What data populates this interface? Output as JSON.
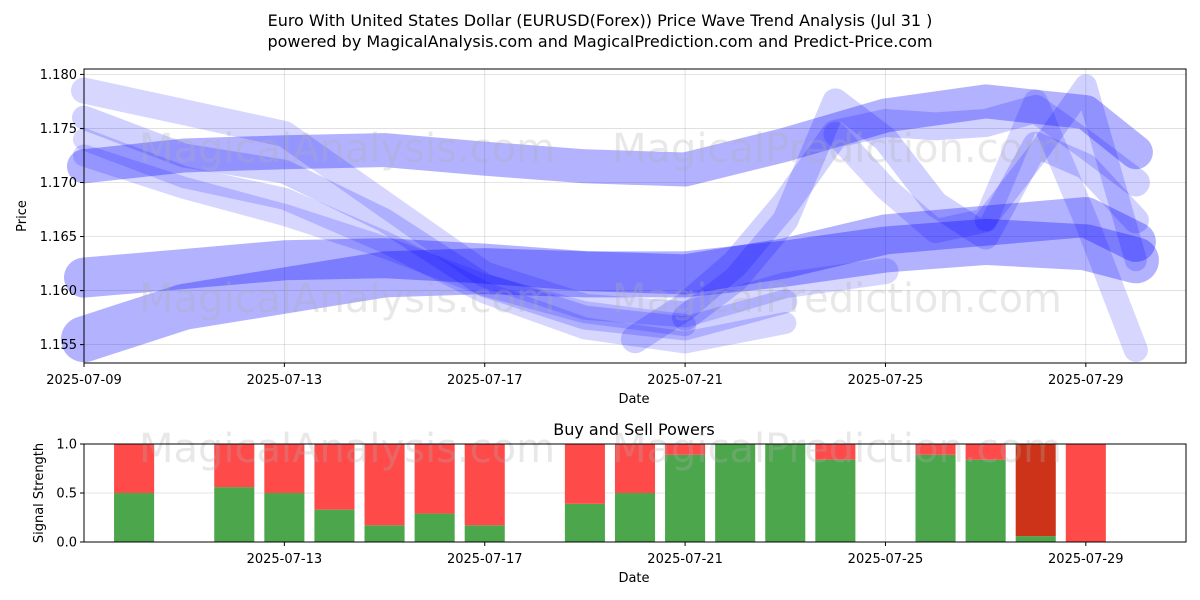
{
  "title_line1": "Euro With United States Dollar (EURUSD(Forex)) Price Wave Trend Analysis (Jul 31 )",
  "title_line2": "powered by MagicalAnalysis.com and MagicalPrediction.com and Predict-Price.com",
  "watermarks": [
    "MagicalAnalysis.com",
    "MagicalPrediction.com"
  ],
  "chart_data": [
    {
      "type": "line",
      "name": "price-wave-trend",
      "xlabel": "Date",
      "ylabel": "Price",
      "xlim": [
        "2025-07-09",
        "2025-07-31"
      ],
      "ylim": [
        1.1533,
        1.1805
      ],
      "x_ticks": [
        "2025-07-09",
        "2025-07-13",
        "2025-07-17",
        "2025-07-21",
        "2025-07-25",
        "2025-07-29"
      ],
      "y_ticks": [
        "1.155",
        "1.160",
        "1.165",
        "1.170",
        "1.175",
        "1.180"
      ],
      "y_tick_values": [
        1.155,
        1.16,
        1.165,
        1.17,
        1.175,
        1.18
      ],
      "grid": true,
      "color": "#0000ff",
      "series": [
        {
          "name": "wave-upper",
          "x": [
            "2025-07-09",
            "2025-07-11",
            "2025-07-13",
            "2025-07-15",
            "2025-07-17",
            "2025-07-19",
            "2025-07-21",
            "2025-07-23",
            "2025-07-25",
            "2025-07-27",
            "2025-07-29",
            "2025-07-30"
          ],
          "y": [
            1.1715,
            1.1725,
            1.1728,
            1.173,
            1.1722,
            1.1715,
            1.1712,
            1.1735,
            1.1762,
            1.1775,
            1.1765,
            1.1728
          ]
        },
        {
          "name": "wave-middle",
          "x": [
            "2025-07-09",
            "2025-07-11",
            "2025-07-13",
            "2025-07-15",
            "2025-07-17",
            "2025-07-19",
            "2025-07-21",
            "2025-07-23",
            "2025-07-25",
            "2025-07-27",
            "2025-07-29",
            "2025-07-30"
          ],
          "y": [
            1.1612,
            1.162,
            1.1628,
            1.163,
            1.1625,
            1.1618,
            1.1615,
            1.163,
            1.1652,
            1.166,
            1.1668,
            1.1645
          ]
        },
        {
          "name": "wave-lower",
          "x": [
            "2025-07-09",
            "2025-07-11",
            "2025-07-13",
            "2025-07-15",
            "2025-07-17",
            "2025-07-19",
            "2025-07-21",
            "2025-07-23",
            "2025-07-25",
            "2025-07-27",
            "2025-07-29",
            "2025-07-30"
          ],
          "y": [
            1.1555,
            1.1585,
            1.16,
            1.1615,
            1.1618,
            1.1615,
            1.1615,
            1.1625,
            1.1638,
            1.1645,
            1.164,
            1.1628
          ]
        },
        {
          "name": "wave-down-1",
          "x": [
            "2025-07-09",
            "2025-07-11",
            "2025-07-13",
            "2025-07-15",
            "2025-07-17",
            "2025-07-19",
            "2025-07-21",
            "2025-07-23",
            "2025-07-25"
          ],
          "y": [
            1.1785,
            1.1765,
            1.1745,
            1.168,
            1.1615,
            1.1585,
            1.1578,
            1.1605,
            1.1618
          ]
        },
        {
          "name": "wave-down-2",
          "x": [
            "2025-07-09",
            "2025-07-11",
            "2025-07-13",
            "2025-07-15",
            "2025-07-17",
            "2025-07-19",
            "2025-07-21",
            "2025-07-23"
          ],
          "y": [
            1.176,
            1.1725,
            1.171,
            1.1665,
            1.1605,
            1.1575,
            1.1565,
            1.159
          ]
        },
        {
          "name": "wave-down-3",
          "x": [
            "2025-07-09",
            "2025-07-11",
            "2025-07-13",
            "2025-07-15",
            "2025-07-17",
            "2025-07-19",
            "2025-07-21",
            "2025-07-23"
          ],
          "y": [
            1.174,
            1.1705,
            1.1685,
            1.1645,
            1.1598,
            1.1565,
            1.1552,
            1.157
          ]
        },
        {
          "name": "wave-down-4",
          "x": [
            "2025-07-09",
            "2025-07-11",
            "2025-07-13",
            "2025-07-15",
            "2025-07-17",
            "2025-07-19",
            "2025-07-21"
          ],
          "y": [
            1.1725,
            1.1695,
            1.167,
            1.164,
            1.1605,
            1.158,
            1.1568
          ]
        },
        {
          "name": "wave-up-1",
          "x": [
            "2025-07-20",
            "2025-07-21",
            "2025-07-22",
            "2025-07-23",
            "2025-07-24",
            "2025-07-25",
            "2025-07-26",
            "2025-07-27",
            "2025-07-28",
            "2025-07-29",
            "2025-07-30"
          ],
          "y": [
            1.1555,
            1.1585,
            1.1625,
            1.168,
            1.1745,
            1.1755,
            1.1752,
            1.1755,
            1.1768,
            1.1735,
            1.17
          ]
        },
        {
          "name": "wave-up-2",
          "x": [
            "2025-07-21",
            "2025-07-22",
            "2025-07-23",
            "2025-07-24",
            "2025-07-25",
            "2025-07-26",
            "2025-07-27",
            "2025-07-28",
            "2025-07-29",
            "2025-07-30"
          ],
          "y": [
            1.1575,
            1.161,
            1.1665,
            1.1775,
            1.174,
            1.168,
            1.165,
            1.1735,
            1.1715,
            1.1665
          ]
        },
        {
          "name": "wave-up-3",
          "x": [
            "2025-07-24",
            "2025-07-25",
            "2025-07-26",
            "2025-07-27",
            "2025-07-28",
            "2025-07-29",
            "2025-07-30"
          ],
          "y": [
            1.1745,
            1.1695,
            1.1655,
            1.1665,
            1.1775,
            1.1665,
            1.1545
          ]
        },
        {
          "name": "wave-up-4",
          "x": [
            "2025-07-27",
            "2025-07-28",
            "2025-07-29",
            "2025-07-30"
          ],
          "y": [
            1.1665,
            1.1725,
            1.179,
            1.1628
          ]
        }
      ]
    },
    {
      "type": "bar",
      "name": "buy-and-sell-powers",
      "title": "Buy and Sell Powers",
      "xlabel": "Date",
      "ylabel": "Signal Strength",
      "ylim": [
        0,
        1
      ],
      "y_ticks": [
        "0.0",
        "0.5",
        "1.0"
      ],
      "y_tick_values": [
        0,
        0.5,
        1
      ],
      "x_ticks": [
        "2025-07-13",
        "2025-07-17",
        "2025-07-21",
        "2025-07-25",
        "2025-07-29"
      ],
      "xlim": [
        "2025-07-09",
        "2025-07-31"
      ],
      "buy_color": "#4ca64c",
      "sell_color": "#ff4a4a",
      "highlight_sell_color": "#cc3318",
      "dates": [
        "2025-07-10",
        "2025-07-12",
        "2025-07-13",
        "2025-07-14",
        "2025-07-15",
        "2025-07-16",
        "2025-07-17",
        "2025-07-19",
        "2025-07-20",
        "2025-07-21",
        "2025-07-22",
        "2025-07-23",
        "2025-07-24",
        "2025-07-26",
        "2025-07-27",
        "2025-07-28",
        "2025-07-29"
      ],
      "buy": [
        0.5,
        0.56,
        0.5,
        0.33,
        0.17,
        0.29,
        0.17,
        0.39,
        0.5,
        0.89,
        1.0,
        1.0,
        0.84,
        0.89,
        0.84,
        0.06,
        0.0
      ],
      "sell": [
        0.5,
        0.44,
        0.5,
        0.67,
        0.83,
        0.71,
        0.83,
        0.61,
        0.5,
        0.11,
        0.0,
        0.0,
        0.16,
        0.11,
        0.16,
        0.94,
        1.0
      ],
      "highlight_index": 15
    }
  ]
}
